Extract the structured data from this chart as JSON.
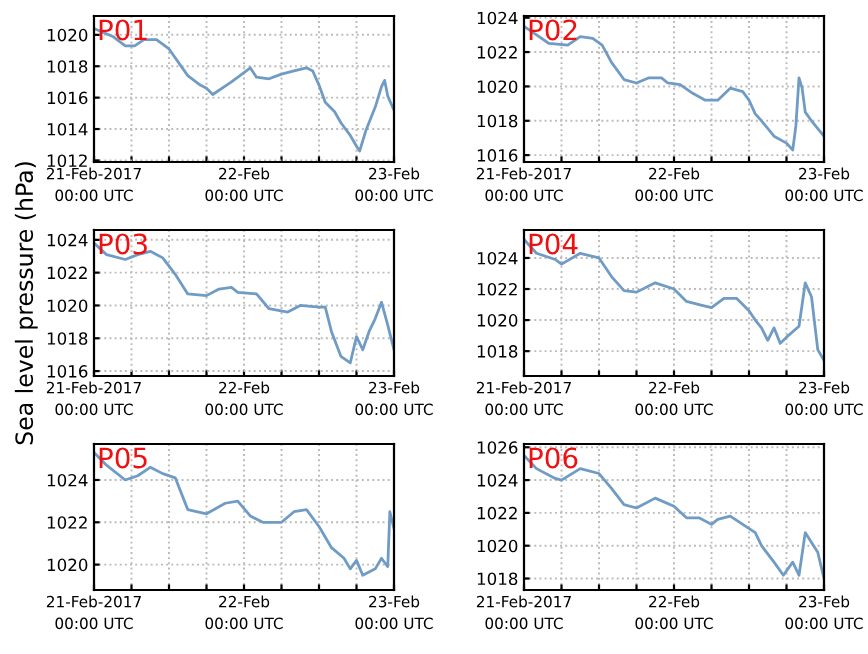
{
  "chart_data": [
    {
      "type": "line",
      "title": "P01",
      "x": [
        "2017-02-21T00:00",
        "2017-02-21T03:00",
        "2017-02-21T05:00",
        "2017-02-21T06:30",
        "2017-02-21T08:00",
        "2017-02-21T10:00",
        "2017-02-21T12:00",
        "2017-02-21T15:00",
        "2017-02-21T17:00",
        "2017-02-21T18:00",
        "2017-02-21T19:00",
        "2017-02-21T22:00",
        "2017-02-22T00:00",
        "2017-02-22T01:00",
        "2017-02-22T02:00",
        "2017-02-22T04:00",
        "2017-02-22T06:00",
        "2017-02-22T08:00",
        "2017-02-22T10:00",
        "2017-02-22T11:00",
        "2017-02-22T12:00",
        "2017-02-22T13:00",
        "2017-02-22T14:30",
        "2017-02-22T15:30",
        "2017-02-22T17:00",
        "2017-02-22T18:00",
        "2017-02-22T18:30",
        "2017-02-22T19:30",
        "2017-02-22T21:00",
        "2017-02-22T22:00",
        "2017-02-22T22:30",
        "2017-02-22T23:00",
        "2017-02-23T00:00"
      ],
      "series": [
        {
          "color": "#6f9bc4",
          "values": [
            1020.4,
            1019.9,
            1019.3,
            1019.3,
            1019.7,
            1019.7,
            1019.1,
            1017.4,
            1016.8,
            1016.6,
            1016.2,
            1017.0,
            1017.6,
            1017.9,
            1017.3,
            1017.2,
            1017.5,
            1017.7,
            1017.9,
            1017.7,
            1016.8,
            1015.7,
            1015.1,
            1014.4,
            1013.6,
            1012.9,
            1012.6,
            1013.9,
            1015.4,
            1016.7,
            1017.1,
            1016.1,
            1015.2
          ]
        }
      ],
      "ylim": [
        1011.9,
        1021.2
      ],
      "yticks": [
        1012,
        1014,
        1016,
        1018,
        1020
      ],
      "xlim": [
        "2017-02-21T00:00",
        "2017-02-23T00:00"
      ],
      "xticks": [
        {
          "value": "2017-02-21T00:00",
          "label": "21-Feb-2017\n00:00 UTC"
        },
        {
          "value": "2017-02-21T06:00",
          "label": null
        },
        {
          "value": "2017-02-21T12:00",
          "label": null
        },
        {
          "value": "2017-02-21T18:00",
          "label": null
        },
        {
          "value": "2017-02-22T00:00",
          "label": "22-Feb\n00:00 UTC"
        },
        {
          "value": "2017-02-22T06:00",
          "label": null
        },
        {
          "value": "2017-02-22T12:00",
          "label": null
        },
        {
          "value": "2017-02-22T18:00",
          "label": null
        },
        {
          "value": "2017-02-23T00:00",
          "label": "23-Feb\n00:00 UTC"
        }
      ],
      "grid": true,
      "line_style": "solid",
      "marker": "none"
    },
    {
      "type": "line",
      "title": "P02",
      "x": [
        "2017-02-21T00:00",
        "2017-02-21T02:00",
        "2017-02-21T04:00",
        "2017-02-21T07:00",
        "2017-02-21T09:00",
        "2017-02-21T11:00",
        "2017-02-21T12:30",
        "2017-02-21T14:00",
        "2017-02-21T16:00",
        "2017-02-21T18:00",
        "2017-02-21T20:00",
        "2017-02-21T22:00",
        "2017-02-21T23:00",
        "2017-02-22T01:00",
        "2017-02-22T03:00",
        "2017-02-22T05:00",
        "2017-02-22T07:00",
        "2017-02-22T09:00",
        "2017-02-22T11:00",
        "2017-02-22T12:00",
        "2017-02-22T13:00",
        "2017-02-22T14:00",
        "2017-02-22T16:00",
        "2017-02-22T18:00",
        "2017-02-22T19:00",
        "2017-02-22T19:30",
        "2017-02-22T20:00",
        "2017-02-22T20:30",
        "2017-02-22T21:00",
        "2017-02-22T22:00",
        "2017-02-23T00:00"
      ],
      "series": [
        {
          "color": "#6f9bc4",
          "values": [
            1023.5,
            1023.0,
            1022.5,
            1022.4,
            1022.9,
            1022.8,
            1022.4,
            1021.4,
            1020.4,
            1020.2,
            1020.5,
            1020.5,
            1020.2,
            1020.1,
            1019.6,
            1019.2,
            1019.2,
            1019.9,
            1019.7,
            1019.2,
            1018.4,
            1018.0,
            1017.1,
            1016.7,
            1016.3,
            1017.7,
            1020.5,
            1019.9,
            1018.5,
            1018.0,
            1017.1
          ]
        }
      ],
      "ylim": [
        1015.6,
        1024.1
      ],
      "yticks": [
        1016,
        1018,
        1020,
        1022,
        1024
      ],
      "xlim": [
        "2017-02-21T00:00",
        "2017-02-23T00:00"
      ],
      "xticks": [
        {
          "value": "2017-02-21T00:00",
          "label": "21-Feb-2017\n00:00 UTC"
        },
        {
          "value": "2017-02-21T06:00",
          "label": null
        },
        {
          "value": "2017-02-21T12:00",
          "label": null
        },
        {
          "value": "2017-02-21T18:00",
          "label": null
        },
        {
          "value": "2017-02-22T00:00",
          "label": "22-Feb\n00:00 UTC"
        },
        {
          "value": "2017-02-22T06:00",
          "label": null
        },
        {
          "value": "2017-02-22T12:00",
          "label": null
        },
        {
          "value": "2017-02-22T18:00",
          "label": null
        },
        {
          "value": "2017-02-23T00:00",
          "label": "23-Feb\n00:00 UTC"
        }
      ],
      "grid": true,
      "line_style": "solid",
      "marker": "none"
    },
    {
      "type": "line",
      "title": "P03",
      "ylabel": "Sea level pressure (hPa)",
      "x": [
        "2017-02-21T00:00",
        "2017-02-21T02:00",
        "2017-02-21T05:00",
        "2017-02-21T07:00",
        "2017-02-21T09:00",
        "2017-02-21T11:00",
        "2017-02-21T13:00",
        "2017-02-21T15:00",
        "2017-02-21T18:00",
        "2017-02-21T20:00",
        "2017-02-21T22:00",
        "2017-02-21T23:00",
        "2017-02-22T02:00",
        "2017-02-22T04:00",
        "2017-02-22T07:00",
        "2017-02-22T09:00",
        "2017-02-22T12:00",
        "2017-02-22T13:00",
        "2017-02-22T14:00",
        "2017-02-22T15:30",
        "2017-02-22T17:00",
        "2017-02-22T18:00",
        "2017-02-22T19:00",
        "2017-02-22T20:00",
        "2017-02-22T21:00",
        "2017-02-22T22:00",
        "2017-02-22T23:00",
        "2017-02-23T00:00"
      ],
      "series": [
        {
          "color": "#6f9bc4",
          "values": [
            1023.8,
            1023.1,
            1022.8,
            1023.1,
            1023.3,
            1022.9,
            1021.9,
            1020.7,
            1020.6,
            1021.0,
            1021.1,
            1020.8,
            1020.7,
            1019.8,
            1019.6,
            1020.0,
            1019.9,
            1019.9,
            1018.4,
            1016.9,
            1016.5,
            1018.1,
            1017.3,
            1018.4,
            1019.2,
            1020.2,
            1018.8,
            1017.3
          ]
        }
      ],
      "ylim": [
        1015.7,
        1024.6
      ],
      "yticks": [
        1016,
        1018,
        1020,
        1022,
        1024
      ],
      "xlim": [
        "2017-02-21T00:00",
        "2017-02-23T00:00"
      ],
      "xticks": [
        {
          "value": "2017-02-21T00:00",
          "label": "21-Feb-2017\n00:00 UTC"
        },
        {
          "value": "2017-02-21T06:00",
          "label": null
        },
        {
          "value": "2017-02-21T12:00",
          "label": null
        },
        {
          "value": "2017-02-21T18:00",
          "label": null
        },
        {
          "value": "2017-02-22T00:00",
          "label": "22-Feb\n00:00 UTC"
        },
        {
          "value": "2017-02-22T06:00",
          "label": null
        },
        {
          "value": "2017-02-22T12:00",
          "label": null
        },
        {
          "value": "2017-02-22T18:00",
          "label": null
        },
        {
          "value": "2017-02-23T00:00",
          "label": "23-Feb\n00:00 UTC"
        }
      ],
      "grid": true,
      "line_style": "solid",
      "marker": "none"
    },
    {
      "type": "line",
      "title": "P04",
      "x": [
        "2017-02-21T00:00",
        "2017-02-21T02:00",
        "2017-02-21T05:00",
        "2017-02-21T06:00",
        "2017-02-21T09:00",
        "2017-02-21T12:00",
        "2017-02-21T14:00",
        "2017-02-21T16:00",
        "2017-02-21T18:00",
        "2017-02-21T21:00",
        "2017-02-22T00:00",
        "2017-02-22T02:00",
        "2017-02-22T04:00",
        "2017-02-22T06:00",
        "2017-02-22T08:00",
        "2017-02-22T10:00",
        "2017-02-22T12:00",
        "2017-02-22T13:00",
        "2017-02-22T14:00",
        "2017-02-22T15:00",
        "2017-02-22T16:00",
        "2017-02-22T17:00",
        "2017-02-22T18:00",
        "2017-02-22T20:00",
        "2017-02-22T21:00",
        "2017-02-22T22:00",
        "2017-02-22T23:00",
        "2017-02-23T00:00"
      ],
      "series": [
        {
          "color": "#6f9bc4",
          "values": [
            1025.2,
            1024.3,
            1023.9,
            1023.6,
            1024.3,
            1024.0,
            1022.8,
            1021.9,
            1021.8,
            1022.4,
            1022.0,
            1021.2,
            1021.0,
            1020.8,
            1021.4,
            1021.4,
            1020.6,
            1020.0,
            1019.5,
            1018.7,
            1019.5,
            1018.5,
            1018.9,
            1019.6,
            1022.4,
            1021.5,
            1018.1,
            1017.4
          ]
        }
      ],
      "ylim": [
        1016.4,
        1025.8
      ],
      "yticks": [
        1018,
        1020,
        1022,
        1024
      ],
      "xlim": [
        "2017-02-21T00:00",
        "2017-02-23T00:00"
      ],
      "xticks": [
        {
          "value": "2017-02-21T00:00",
          "label": "21-Feb-2017\n00:00 UTC"
        },
        {
          "value": "2017-02-21T06:00",
          "label": null
        },
        {
          "value": "2017-02-21T12:00",
          "label": null
        },
        {
          "value": "2017-02-21T18:00",
          "label": null
        },
        {
          "value": "2017-02-22T00:00",
          "label": "22-Feb\n00:00 UTC"
        },
        {
          "value": "2017-02-22T06:00",
          "label": null
        },
        {
          "value": "2017-02-22T12:00",
          "label": null
        },
        {
          "value": "2017-02-22T18:00",
          "label": null
        },
        {
          "value": "2017-02-23T00:00",
          "label": "23-Feb\n00:00 UTC"
        }
      ],
      "grid": true,
      "line_style": "solid",
      "marker": "none"
    },
    {
      "type": "line",
      "title": "P05",
      "x": [
        "2017-02-21T00:00",
        "2017-02-21T02:00",
        "2017-02-21T05:00",
        "2017-02-21T07:00",
        "2017-02-21T09:00",
        "2017-02-21T11:00",
        "2017-02-21T13:00",
        "2017-02-21T15:00",
        "2017-02-21T18:00",
        "2017-02-21T21:00",
        "2017-02-21T23:00",
        "2017-02-22T01:00",
        "2017-02-22T03:00",
        "2017-02-22T06:00",
        "2017-02-22T08:00",
        "2017-02-22T10:00",
        "2017-02-22T12:00",
        "2017-02-22T14:00",
        "2017-02-22T16:00",
        "2017-02-22T17:00",
        "2017-02-22T18:00",
        "2017-02-22T19:00",
        "2017-02-22T21:00",
        "2017-02-22T22:00",
        "2017-02-22T23:00",
        "2017-02-22T23:20",
        "2017-02-23T00:00"
      ],
      "series": [
        {
          "color": "#6f9bc4",
          "values": [
            1025.3,
            1024.7,
            1024.0,
            1024.2,
            1024.6,
            1024.3,
            1024.1,
            1022.6,
            1022.4,
            1022.9,
            1023.0,
            1022.3,
            1022.0,
            1022.0,
            1022.5,
            1022.6,
            1021.8,
            1020.8,
            1020.3,
            1019.8,
            1020.2,
            1019.5,
            1019.8,
            1020.3,
            1019.9,
            1022.5,
            1021.7
          ]
        }
      ],
      "ylim": [
        1018.8,
        1025.7
      ],
      "yticks": [
        1020,
        1022,
        1024
      ],
      "xlim": [
        "2017-02-21T00:00",
        "2017-02-23T00:00"
      ],
      "xticks": [
        {
          "value": "2017-02-21T00:00",
          "label": "21-Feb-2017\n00:00 UTC"
        },
        {
          "value": "2017-02-21T06:00",
          "label": null
        },
        {
          "value": "2017-02-21T12:00",
          "label": null
        },
        {
          "value": "2017-02-21T18:00",
          "label": null
        },
        {
          "value": "2017-02-22T00:00",
          "label": "22-Feb\n00:00 UTC"
        },
        {
          "value": "2017-02-22T06:00",
          "label": null
        },
        {
          "value": "2017-02-22T12:00",
          "label": null
        },
        {
          "value": "2017-02-22T18:00",
          "label": null
        },
        {
          "value": "2017-02-23T00:00",
          "label": "23-Feb\n00:00 UTC"
        }
      ],
      "grid": true,
      "line_style": "solid",
      "marker": "none"
    },
    {
      "type": "line",
      "title": "P06",
      "x": [
        "2017-02-21T00:00",
        "2017-02-21T02:00",
        "2017-02-21T05:00",
        "2017-02-21T06:00",
        "2017-02-21T09:00",
        "2017-02-21T12:00",
        "2017-02-21T14:00",
        "2017-02-21T16:00",
        "2017-02-21T18:00",
        "2017-02-21T21:00",
        "2017-02-22T00:00",
        "2017-02-22T02:00",
        "2017-02-22T04:00",
        "2017-02-22T06:00",
        "2017-02-22T07:00",
        "2017-02-22T09:00",
        "2017-02-22T11:00",
        "2017-02-22T13:00",
        "2017-02-22T14:00",
        "2017-02-22T16:00",
        "2017-02-22T17:30",
        "2017-02-22T19:00",
        "2017-02-22T20:00",
        "2017-02-22T21:00",
        "2017-02-22T22:00",
        "2017-02-22T23:00",
        "2017-02-23T00:00"
      ],
      "series": [
        {
          "color": "#6f9bc4",
          "values": [
            1025.5,
            1024.7,
            1024.1,
            1024.0,
            1024.7,
            1024.4,
            1023.5,
            1022.5,
            1022.3,
            1022.9,
            1022.4,
            1021.7,
            1021.7,
            1021.3,
            1021.6,
            1021.8,
            1021.3,
            1020.8,
            1020.0,
            1019.0,
            1018.2,
            1019.0,
            1018.2,
            1020.8,
            1020.2,
            1019.6,
            1018.0
          ]
        }
      ],
      "ylim": [
        1017.3,
        1026.2
      ],
      "yticks": [
        1018,
        1020,
        1022,
        1024,
        1026
      ],
      "xlim": [
        "2017-02-21T00:00",
        "2017-02-23T00:00"
      ],
      "xticks": [
        {
          "value": "2017-02-21T00:00",
          "label": "21-Feb-2017\n00:00 UTC"
        },
        {
          "value": "2017-02-21T06:00",
          "label": null
        },
        {
          "value": "2017-02-21T12:00",
          "label": null
        },
        {
          "value": "2017-02-21T18:00",
          "label": null
        },
        {
          "value": "2017-02-22T00:00",
          "label": "22-Feb\n00:00 UTC"
        },
        {
          "value": "2017-02-22T06:00",
          "label": null
        },
        {
          "value": "2017-02-22T12:00",
          "label": null
        },
        {
          "value": "2017-02-22T18:00",
          "label": null
        },
        {
          "value": "2017-02-23T00:00",
          "label": "23-Feb\n00:00 UTC"
        }
      ],
      "grid": true,
      "line_style": "solid",
      "marker": "none"
    }
  ]
}
